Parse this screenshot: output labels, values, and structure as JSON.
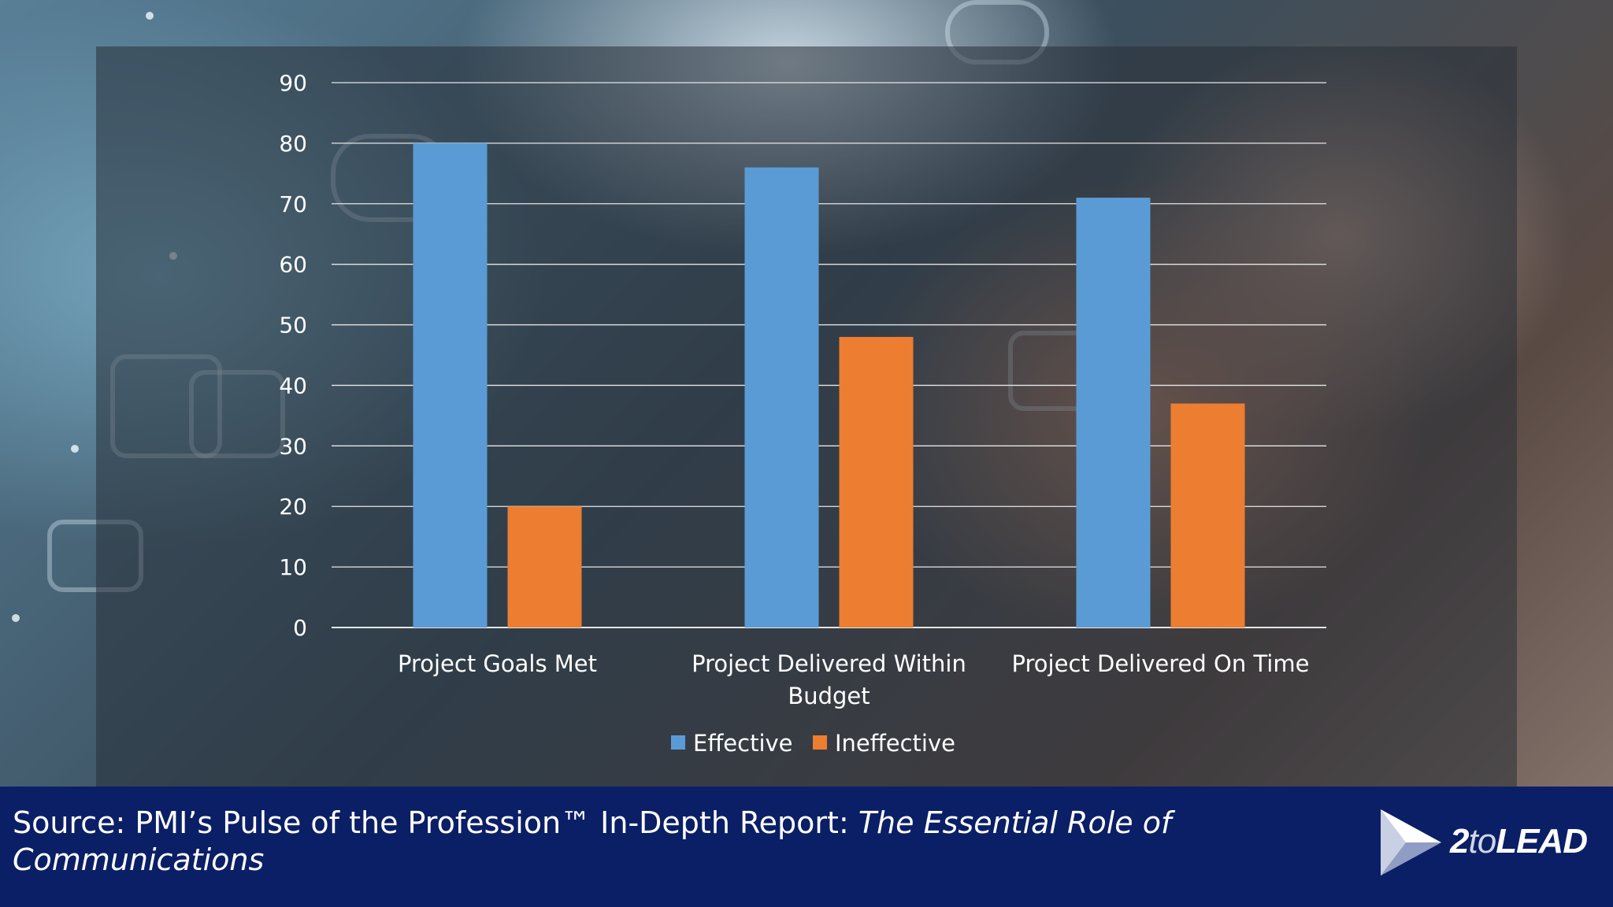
{
  "chart_data": {
    "type": "bar",
    "categories": [
      "Project Goals Met",
      "Project Delivered Within Budget",
      "Project Delivered On Time"
    ],
    "category_lines": [
      [
        "Project Goals Met"
      ],
      [
        "Project Delivered Within",
        "Budget"
      ],
      [
        "Project Delivered On Time"
      ]
    ],
    "series": [
      {
        "name": "Effective",
        "values": [
          80,
          76,
          71
        ],
        "color": "#5b9bd5"
      },
      {
        "name": "Ineffective",
        "values": [
          20,
          48,
          37
        ],
        "color": "#ed7d31"
      }
    ],
    "ylim": [
      0,
      90
    ],
    "yticks": [
      "0",
      "10",
      "20",
      "30",
      "40",
      "50",
      "60",
      "70",
      "80",
      "90"
    ],
    "grid": true,
    "legend": "bottom"
  },
  "footer": {
    "source_plain": "Source:  PMI’s Pulse of the Profession™ In-Depth Report:  ",
    "source_italic": "The Essential Role of Communications",
    "logo_prefix": "2",
    "logo_to": "to",
    "logo_suffix": "LEAD"
  }
}
